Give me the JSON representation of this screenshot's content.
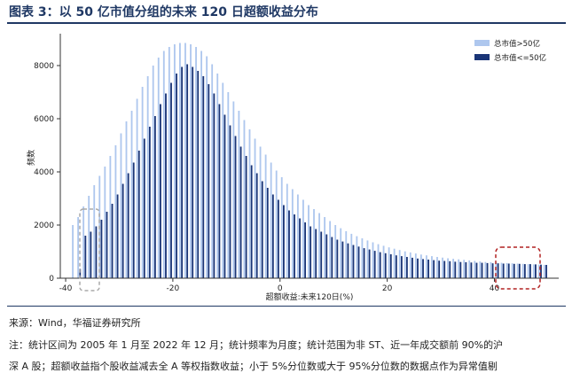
{
  "figure": {
    "title": "图表 3：以 50 亿市值分组的未来 120 日超额收益分布",
    "source": "来源：Wind，华福证券研究所",
    "note_line1": "注：统计区间为 2005 年 1 月至 2022 年 12 月；统计频率为月度；统计范围为非 ST、近一年成交额前 90%的沪",
    "note_line2": "深 A 股；超额收益指个股收益减去全 A 等权指数收益；小于 5%分位数或大于 95%分位数的数据点作为异常值剔"
  },
  "chart_data": {
    "type": "bar",
    "title": "",
    "xlabel": "超额收益:未来120日(%)",
    "ylabel": "频数",
    "xlim": [
      -41,
      52
    ],
    "ylim": [
      0,
      9200
    ],
    "xticks": [
      -40,
      -20,
      0,
      20,
      40
    ],
    "yticks": [
      0,
      2000,
      4000,
      6000,
      8000
    ],
    "grid": false,
    "legend_position": "top-right",
    "x": [
      -38.5,
      -37.5,
      -36.5,
      -35.5,
      -34.5,
      -33.5,
      -32.5,
      -31.5,
      -30.5,
      -29.5,
      -28.5,
      -27.5,
      -26.5,
      -25.5,
      -24.5,
      -23.5,
      -22.5,
      -21.5,
      -20.5,
      -19.5,
      -18.5,
      -17.5,
      -16.5,
      -15.5,
      -14.5,
      -13.5,
      -12.5,
      -11.5,
      -10.5,
      -9.5,
      -8.5,
      -7.5,
      -6.5,
      -5.5,
      -4.5,
      -3.5,
      -2.5,
      -1.5,
      -0.5,
      0.5,
      1.5,
      2.5,
      3.5,
      4.5,
      5.5,
      6.5,
      7.5,
      8.5,
      9.5,
      10.5,
      11.5,
      12.5,
      13.5,
      14.5,
      15.5,
      16.5,
      17.5,
      18.5,
      19.5,
      20.5,
      21.5,
      22.5,
      23.5,
      24.5,
      25.5,
      26.5,
      27.5,
      28.5,
      29.5,
      30.5,
      31.5,
      32.5,
      33.5,
      34.5,
      35.5,
      36.5,
      37.5,
      38.5,
      39.5,
      40.5,
      41.5,
      42.5,
      43.5,
      44.5,
      45.5,
      46.5,
      47.5,
      48.5,
      49.5
    ],
    "series": [
      {
        "name": "总市值>50亿",
        "color": "#aec7ee",
        "values": [
          2000,
          2300,
          2700,
          3100,
          3500,
          3850,
          4200,
          4600,
          5000,
          5450,
          5900,
          6300,
          6750,
          7200,
          7600,
          8000,
          8300,
          8550,
          8700,
          8800,
          8850,
          8850,
          8800,
          8700,
          8550,
          8350,
          8050,
          7700,
          7350,
          7000,
          6650,
          6300,
          5950,
          5600,
          5250,
          4950,
          4650,
          4350,
          4050,
          3800,
          3550,
          3350,
          3150,
          2950,
          2750,
          2600,
          2450,
          2300,
          2150,
          2000,
          1880,
          1770,
          1670,
          1580,
          1500,
          1420,
          1350,
          1280,
          1220,
          1160,
          1110,
          1060,
          1010,
          970,
          930,
          890,
          860,
          830,
          800,
          775,
          750,
          730,
          710,
          690,
          670,
          650,
          630,
          610,
          600,
          590,
          580,
          570,
          560,
          550,
          540,
          530,
          520,
          510,
          500
        ]
      },
      {
        "name": "总市值<=50亿",
        "color": "#1a3577",
        "values": [
          0,
          350,
          1600,
          1750,
          1950,
          2200,
          2500,
          2800,
          3150,
          3550,
          3950,
          4350,
          4800,
          5250,
          5700,
          6100,
          6550,
          6950,
          7350,
          7700,
          7950,
          8050,
          7950,
          7800,
          7600,
          7300,
          6950,
          6550,
          6150,
          5750,
          5350,
          4950,
          4600,
          4250,
          3950,
          3650,
          3400,
          3150,
          2950,
          2750,
          2550,
          2400,
          2250,
          2100,
          1950,
          1850,
          1750,
          1650,
          1550,
          1450,
          1380,
          1310,
          1250,
          1190,
          1130,
          1080,
          1030,
          980,
          940,
          900,
          860,
          830,
          800,
          770,
          740,
          720,
          700,
          680,
          660,
          650,
          640,
          620,
          610,
          600,
          590,
          580,
          580,
          570,
          560,
          560,
          550,
          550,
          540,
          540,
          530,
          530,
          520,
          510,
          500
        ]
      }
    ]
  }
}
